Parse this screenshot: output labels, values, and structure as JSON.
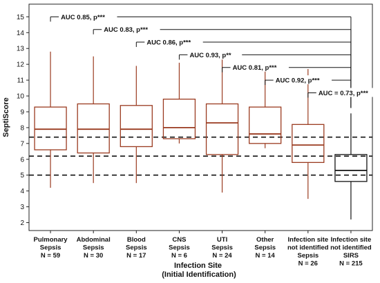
{
  "chart_data": {
    "type": "box",
    "title": "",
    "ylabel": "SeptiScore",
    "xlabel_lines": [
      "Infection Site",
      "(Initial Identification)"
    ],
    "ylim": [
      1.5,
      15.8
    ],
    "yticks": [
      2,
      3,
      4,
      5,
      6,
      7,
      8,
      9,
      10,
      11,
      12,
      13,
      14,
      15
    ],
    "grid": false,
    "reference_lines": [
      7.4,
      6.2,
      5.0
    ],
    "categories": [
      {
        "lines": [
          "Pulmonary",
          "Sepsis",
          "N = 59"
        ],
        "min": 4.2,
        "q1": 6.6,
        "median": 7.9,
        "q3": 9.3,
        "max": 12.8,
        "color": "#9a3a1f"
      },
      {
        "lines": [
          "Abdominal",
          "Sepsis",
          "N = 30"
        ],
        "min": 4.5,
        "q1": 6.4,
        "median": 7.9,
        "q3": 9.5,
        "max": 12.5,
        "color": "#9a3a1f"
      },
      {
        "lines": [
          "Blood",
          "Sepsis",
          "N = 17"
        ],
        "min": 4.5,
        "q1": 6.8,
        "median": 7.9,
        "q3": 9.4,
        "max": 11.9,
        "color": "#9a3a1f"
      },
      {
        "lines": [
          "CNS",
          "Sepsis",
          "N = 6"
        ],
        "min": 7.0,
        "q1": 7.3,
        "median": 8.0,
        "q3": 9.8,
        "max": 12.1,
        "color": "#9a3a1f"
      },
      {
        "lines": [
          "UTI",
          "Sepsis",
          "N = 24"
        ],
        "min": 3.9,
        "q1": 6.3,
        "median": 8.3,
        "q3": 9.5,
        "max": 12.3,
        "color": "#9a3a1f"
      },
      {
        "lines": [
          "Other",
          "Sepsis",
          "N = 14"
        ],
        "min": 6.7,
        "q1": 7.0,
        "median": 7.6,
        "q3": 9.3,
        "max": 11.9,
        "color": "#9a3a1f"
      },
      {
        "lines": [
          "Infection site",
          "not identified",
          "Sepsis",
          "N = 26"
        ],
        "min": 3.5,
        "q1": 5.8,
        "median": 6.9,
        "q3": 8.2,
        "max": 11.7,
        "color": "#9a3a1f"
      },
      {
        "lines": [
          "Infection site",
          "not identified",
          "SIRS",
          "N = 215"
        ],
        "min": 2.2,
        "q1": 4.6,
        "median": 5.3,
        "q3": 6.3,
        "max": 8.9,
        "color": "#111111"
      }
    ],
    "comparisons": [
      {
        "from": 0,
        "to": 7,
        "y": 15.0,
        "label": "AUC 0.85, p***"
      },
      {
        "from": 1,
        "to": 7,
        "y": 14.2,
        "label": "AUC 0.83, p***"
      },
      {
        "from": 2,
        "to": 7,
        "y": 13.4,
        "label": "AUC 0.86, p***"
      },
      {
        "from": 3,
        "to": 7,
        "y": 12.6,
        "label": "AUC 0.93, p**"
      },
      {
        "from": 4,
        "to": 7,
        "y": 11.8,
        "label": "AUC 0.81, p***"
      },
      {
        "from": 5,
        "to": 7,
        "y": 11.0,
        "label": "AUC 0.92, p***"
      },
      {
        "from": 6,
        "to": 7,
        "y": 10.2,
        "label": "AUC = 0.73, p***"
      }
    ]
  }
}
